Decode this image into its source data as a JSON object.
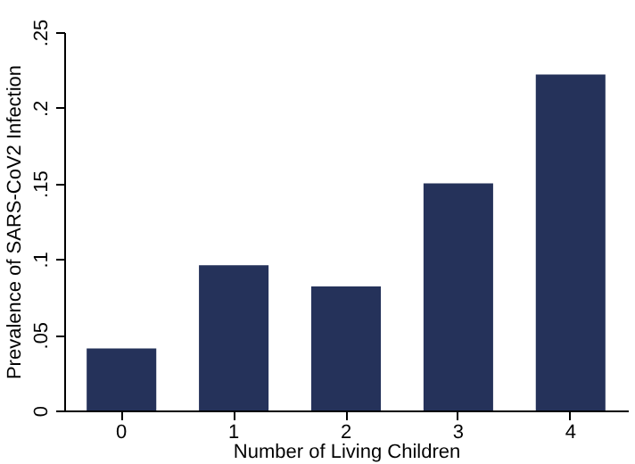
{
  "chart_data": {
    "type": "bar",
    "xlabel": "Number of Living Children",
    "ylabel": "Prevalence of SARS-CoV2 Infection",
    "categories": [
      "0",
      "1",
      "2",
      "3",
      "4"
    ],
    "values": [
      0.041,
      0.096,
      0.082,
      0.15,
      0.222
    ],
    "color": "#25325a",
    "ylim": [
      0,
      0.25
    ],
    "yticks": [
      0,
      {
        "value": 0.05,
        "label": ".05"
      },
      {
        "value": 0.1,
        "label": ".1"
      },
      {
        "value": 0.15,
        "label": ".15"
      },
      {
        "value": 0.2,
        "label": ".2"
      },
      {
        "value": 0.25,
        "label": ".25"
      }
    ],
    "grid": false
  }
}
